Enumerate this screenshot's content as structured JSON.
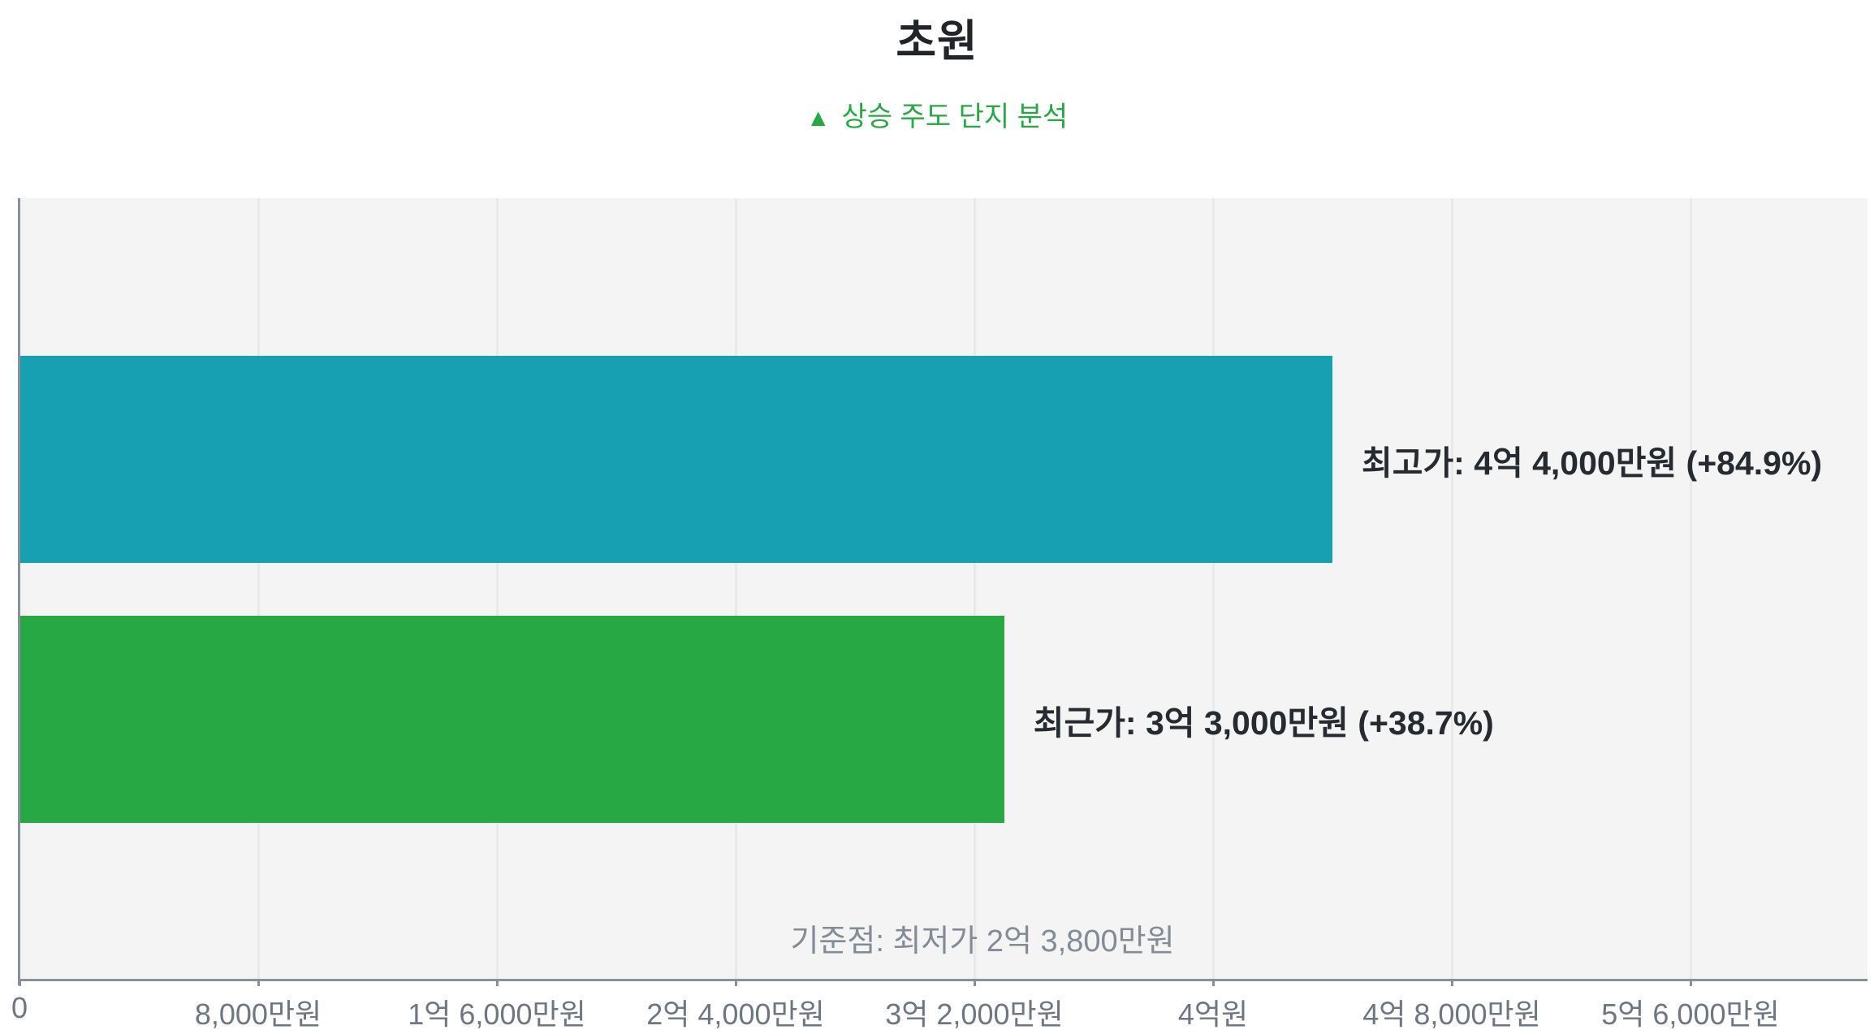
{
  "chart_data": {
    "type": "bar",
    "orientation": "horizontal",
    "title": "초원",
    "subtitle_marker": "▲",
    "subtitle": "상승 주도 단지 분석",
    "unit": "만원",
    "bars": [
      {
        "key": "highest-price",
        "name": "최고가",
        "value": 44000,
        "label": "최고가: 4억 4,000만원 (+84.9%)",
        "percent_change": "+84.9%",
        "color": "#17a0b2"
      },
      {
        "key": "recent-price",
        "name": "최근가",
        "value": 33000,
        "label": "최근가: 3억 3,000만원 (+38.7%)",
        "percent_change": "+38.7%",
        "color": "#28a745"
      }
    ],
    "baseline_annotation": "기준점: 최저가 2억 3,800만원",
    "baseline_value": 23800,
    "x_ticks": [
      {
        "value": 0,
        "label": "0"
      },
      {
        "value": 8000,
        "label": "8,000만원"
      },
      {
        "value": 16000,
        "label": "1억 6,000만원"
      },
      {
        "value": 24000,
        "label": "2억 4,000만원"
      },
      {
        "value": 32000,
        "label": "3억 2,000만원"
      },
      {
        "value": 40000,
        "label": "4억원"
      },
      {
        "value": 48000,
        "label": "4억 8,000만원"
      },
      {
        "value": 56000,
        "label": "5억 6,000만원"
      }
    ],
    "xlim": [
      0,
      61900
    ],
    "grid": true,
    "legend": "none",
    "colors": {
      "plot_bg": "#f4f4f4",
      "gridline": "#e9e9e9",
      "axis": "#8a9099",
      "title": "#212529",
      "subtitle": "#28a745",
      "bar_label": "#262b31",
      "tick_label": "#6e7781",
      "annotation": "#828b96"
    }
  }
}
